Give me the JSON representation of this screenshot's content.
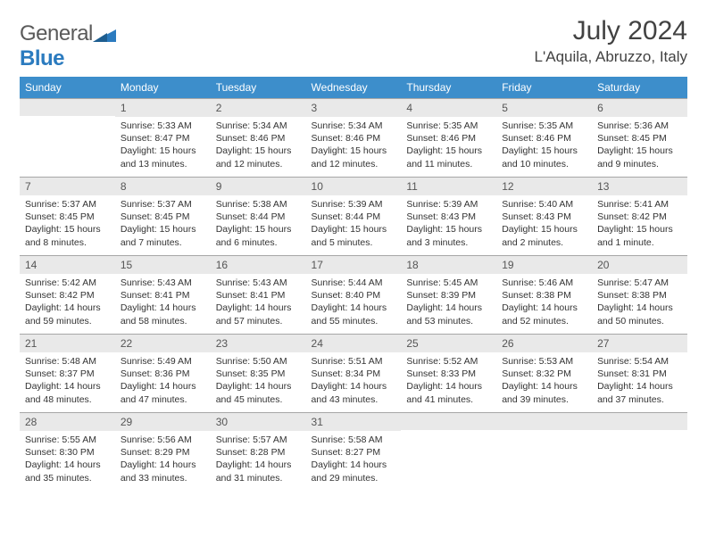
{
  "brand": {
    "text1": "General",
    "text2": "Blue"
  },
  "title": "July 2024",
  "location": "L'Aquila, Abruzzo, Italy",
  "colors": {
    "header_bg": "#3d8ecb",
    "header_text": "#ffffff",
    "daynum_bg": "#e9e9e9",
    "daynum_border": "#a7a7a7",
    "body_text": "#333333"
  },
  "weekdays": [
    "Sunday",
    "Monday",
    "Tuesday",
    "Wednesday",
    "Thursday",
    "Friday",
    "Saturday"
  ],
  "weeks": [
    [
      {
        "n": "",
        "lines": []
      },
      {
        "n": "1",
        "lines": [
          "Sunrise: 5:33 AM",
          "Sunset: 8:47 PM",
          "Daylight: 15 hours",
          "and 13 minutes."
        ]
      },
      {
        "n": "2",
        "lines": [
          "Sunrise: 5:34 AM",
          "Sunset: 8:46 PM",
          "Daylight: 15 hours",
          "and 12 minutes."
        ]
      },
      {
        "n": "3",
        "lines": [
          "Sunrise: 5:34 AM",
          "Sunset: 8:46 PM",
          "Daylight: 15 hours",
          "and 12 minutes."
        ]
      },
      {
        "n": "4",
        "lines": [
          "Sunrise: 5:35 AM",
          "Sunset: 8:46 PM",
          "Daylight: 15 hours",
          "and 11 minutes."
        ]
      },
      {
        "n": "5",
        "lines": [
          "Sunrise: 5:35 AM",
          "Sunset: 8:46 PM",
          "Daylight: 15 hours",
          "and 10 minutes."
        ]
      },
      {
        "n": "6",
        "lines": [
          "Sunrise: 5:36 AM",
          "Sunset: 8:45 PM",
          "Daylight: 15 hours",
          "and 9 minutes."
        ]
      }
    ],
    [
      {
        "n": "7",
        "lines": [
          "Sunrise: 5:37 AM",
          "Sunset: 8:45 PM",
          "Daylight: 15 hours",
          "and 8 minutes."
        ]
      },
      {
        "n": "8",
        "lines": [
          "Sunrise: 5:37 AM",
          "Sunset: 8:45 PM",
          "Daylight: 15 hours",
          "and 7 minutes."
        ]
      },
      {
        "n": "9",
        "lines": [
          "Sunrise: 5:38 AM",
          "Sunset: 8:44 PM",
          "Daylight: 15 hours",
          "and 6 minutes."
        ]
      },
      {
        "n": "10",
        "lines": [
          "Sunrise: 5:39 AM",
          "Sunset: 8:44 PM",
          "Daylight: 15 hours",
          "and 5 minutes."
        ]
      },
      {
        "n": "11",
        "lines": [
          "Sunrise: 5:39 AM",
          "Sunset: 8:43 PM",
          "Daylight: 15 hours",
          "and 3 minutes."
        ]
      },
      {
        "n": "12",
        "lines": [
          "Sunrise: 5:40 AM",
          "Sunset: 8:43 PM",
          "Daylight: 15 hours",
          "and 2 minutes."
        ]
      },
      {
        "n": "13",
        "lines": [
          "Sunrise: 5:41 AM",
          "Sunset: 8:42 PM",
          "Daylight: 15 hours",
          "and 1 minute."
        ]
      }
    ],
    [
      {
        "n": "14",
        "lines": [
          "Sunrise: 5:42 AM",
          "Sunset: 8:42 PM",
          "Daylight: 14 hours",
          "and 59 minutes."
        ]
      },
      {
        "n": "15",
        "lines": [
          "Sunrise: 5:43 AM",
          "Sunset: 8:41 PM",
          "Daylight: 14 hours",
          "and 58 minutes."
        ]
      },
      {
        "n": "16",
        "lines": [
          "Sunrise: 5:43 AM",
          "Sunset: 8:41 PM",
          "Daylight: 14 hours",
          "and 57 minutes."
        ]
      },
      {
        "n": "17",
        "lines": [
          "Sunrise: 5:44 AM",
          "Sunset: 8:40 PM",
          "Daylight: 14 hours",
          "and 55 minutes."
        ]
      },
      {
        "n": "18",
        "lines": [
          "Sunrise: 5:45 AM",
          "Sunset: 8:39 PM",
          "Daylight: 14 hours",
          "and 53 minutes."
        ]
      },
      {
        "n": "19",
        "lines": [
          "Sunrise: 5:46 AM",
          "Sunset: 8:38 PM",
          "Daylight: 14 hours",
          "and 52 minutes."
        ]
      },
      {
        "n": "20",
        "lines": [
          "Sunrise: 5:47 AM",
          "Sunset: 8:38 PM",
          "Daylight: 14 hours",
          "and 50 minutes."
        ]
      }
    ],
    [
      {
        "n": "21",
        "lines": [
          "Sunrise: 5:48 AM",
          "Sunset: 8:37 PM",
          "Daylight: 14 hours",
          "and 48 minutes."
        ]
      },
      {
        "n": "22",
        "lines": [
          "Sunrise: 5:49 AM",
          "Sunset: 8:36 PM",
          "Daylight: 14 hours",
          "and 47 minutes."
        ]
      },
      {
        "n": "23",
        "lines": [
          "Sunrise: 5:50 AM",
          "Sunset: 8:35 PM",
          "Daylight: 14 hours",
          "and 45 minutes."
        ]
      },
      {
        "n": "24",
        "lines": [
          "Sunrise: 5:51 AM",
          "Sunset: 8:34 PM",
          "Daylight: 14 hours",
          "and 43 minutes."
        ]
      },
      {
        "n": "25",
        "lines": [
          "Sunrise: 5:52 AM",
          "Sunset: 8:33 PM",
          "Daylight: 14 hours",
          "and 41 minutes."
        ]
      },
      {
        "n": "26",
        "lines": [
          "Sunrise: 5:53 AM",
          "Sunset: 8:32 PM",
          "Daylight: 14 hours",
          "and 39 minutes."
        ]
      },
      {
        "n": "27",
        "lines": [
          "Sunrise: 5:54 AM",
          "Sunset: 8:31 PM",
          "Daylight: 14 hours",
          "and 37 minutes."
        ]
      }
    ],
    [
      {
        "n": "28",
        "lines": [
          "Sunrise: 5:55 AM",
          "Sunset: 8:30 PM",
          "Daylight: 14 hours",
          "and 35 minutes."
        ]
      },
      {
        "n": "29",
        "lines": [
          "Sunrise: 5:56 AM",
          "Sunset: 8:29 PM",
          "Daylight: 14 hours",
          "and 33 minutes."
        ]
      },
      {
        "n": "30",
        "lines": [
          "Sunrise: 5:57 AM",
          "Sunset: 8:28 PM",
          "Daylight: 14 hours",
          "and 31 minutes."
        ]
      },
      {
        "n": "31",
        "lines": [
          "Sunrise: 5:58 AM",
          "Sunset: 8:27 PM",
          "Daylight: 14 hours",
          "and 29 minutes."
        ]
      },
      {
        "n": "",
        "lines": []
      },
      {
        "n": "",
        "lines": []
      },
      {
        "n": "",
        "lines": []
      }
    ]
  ]
}
